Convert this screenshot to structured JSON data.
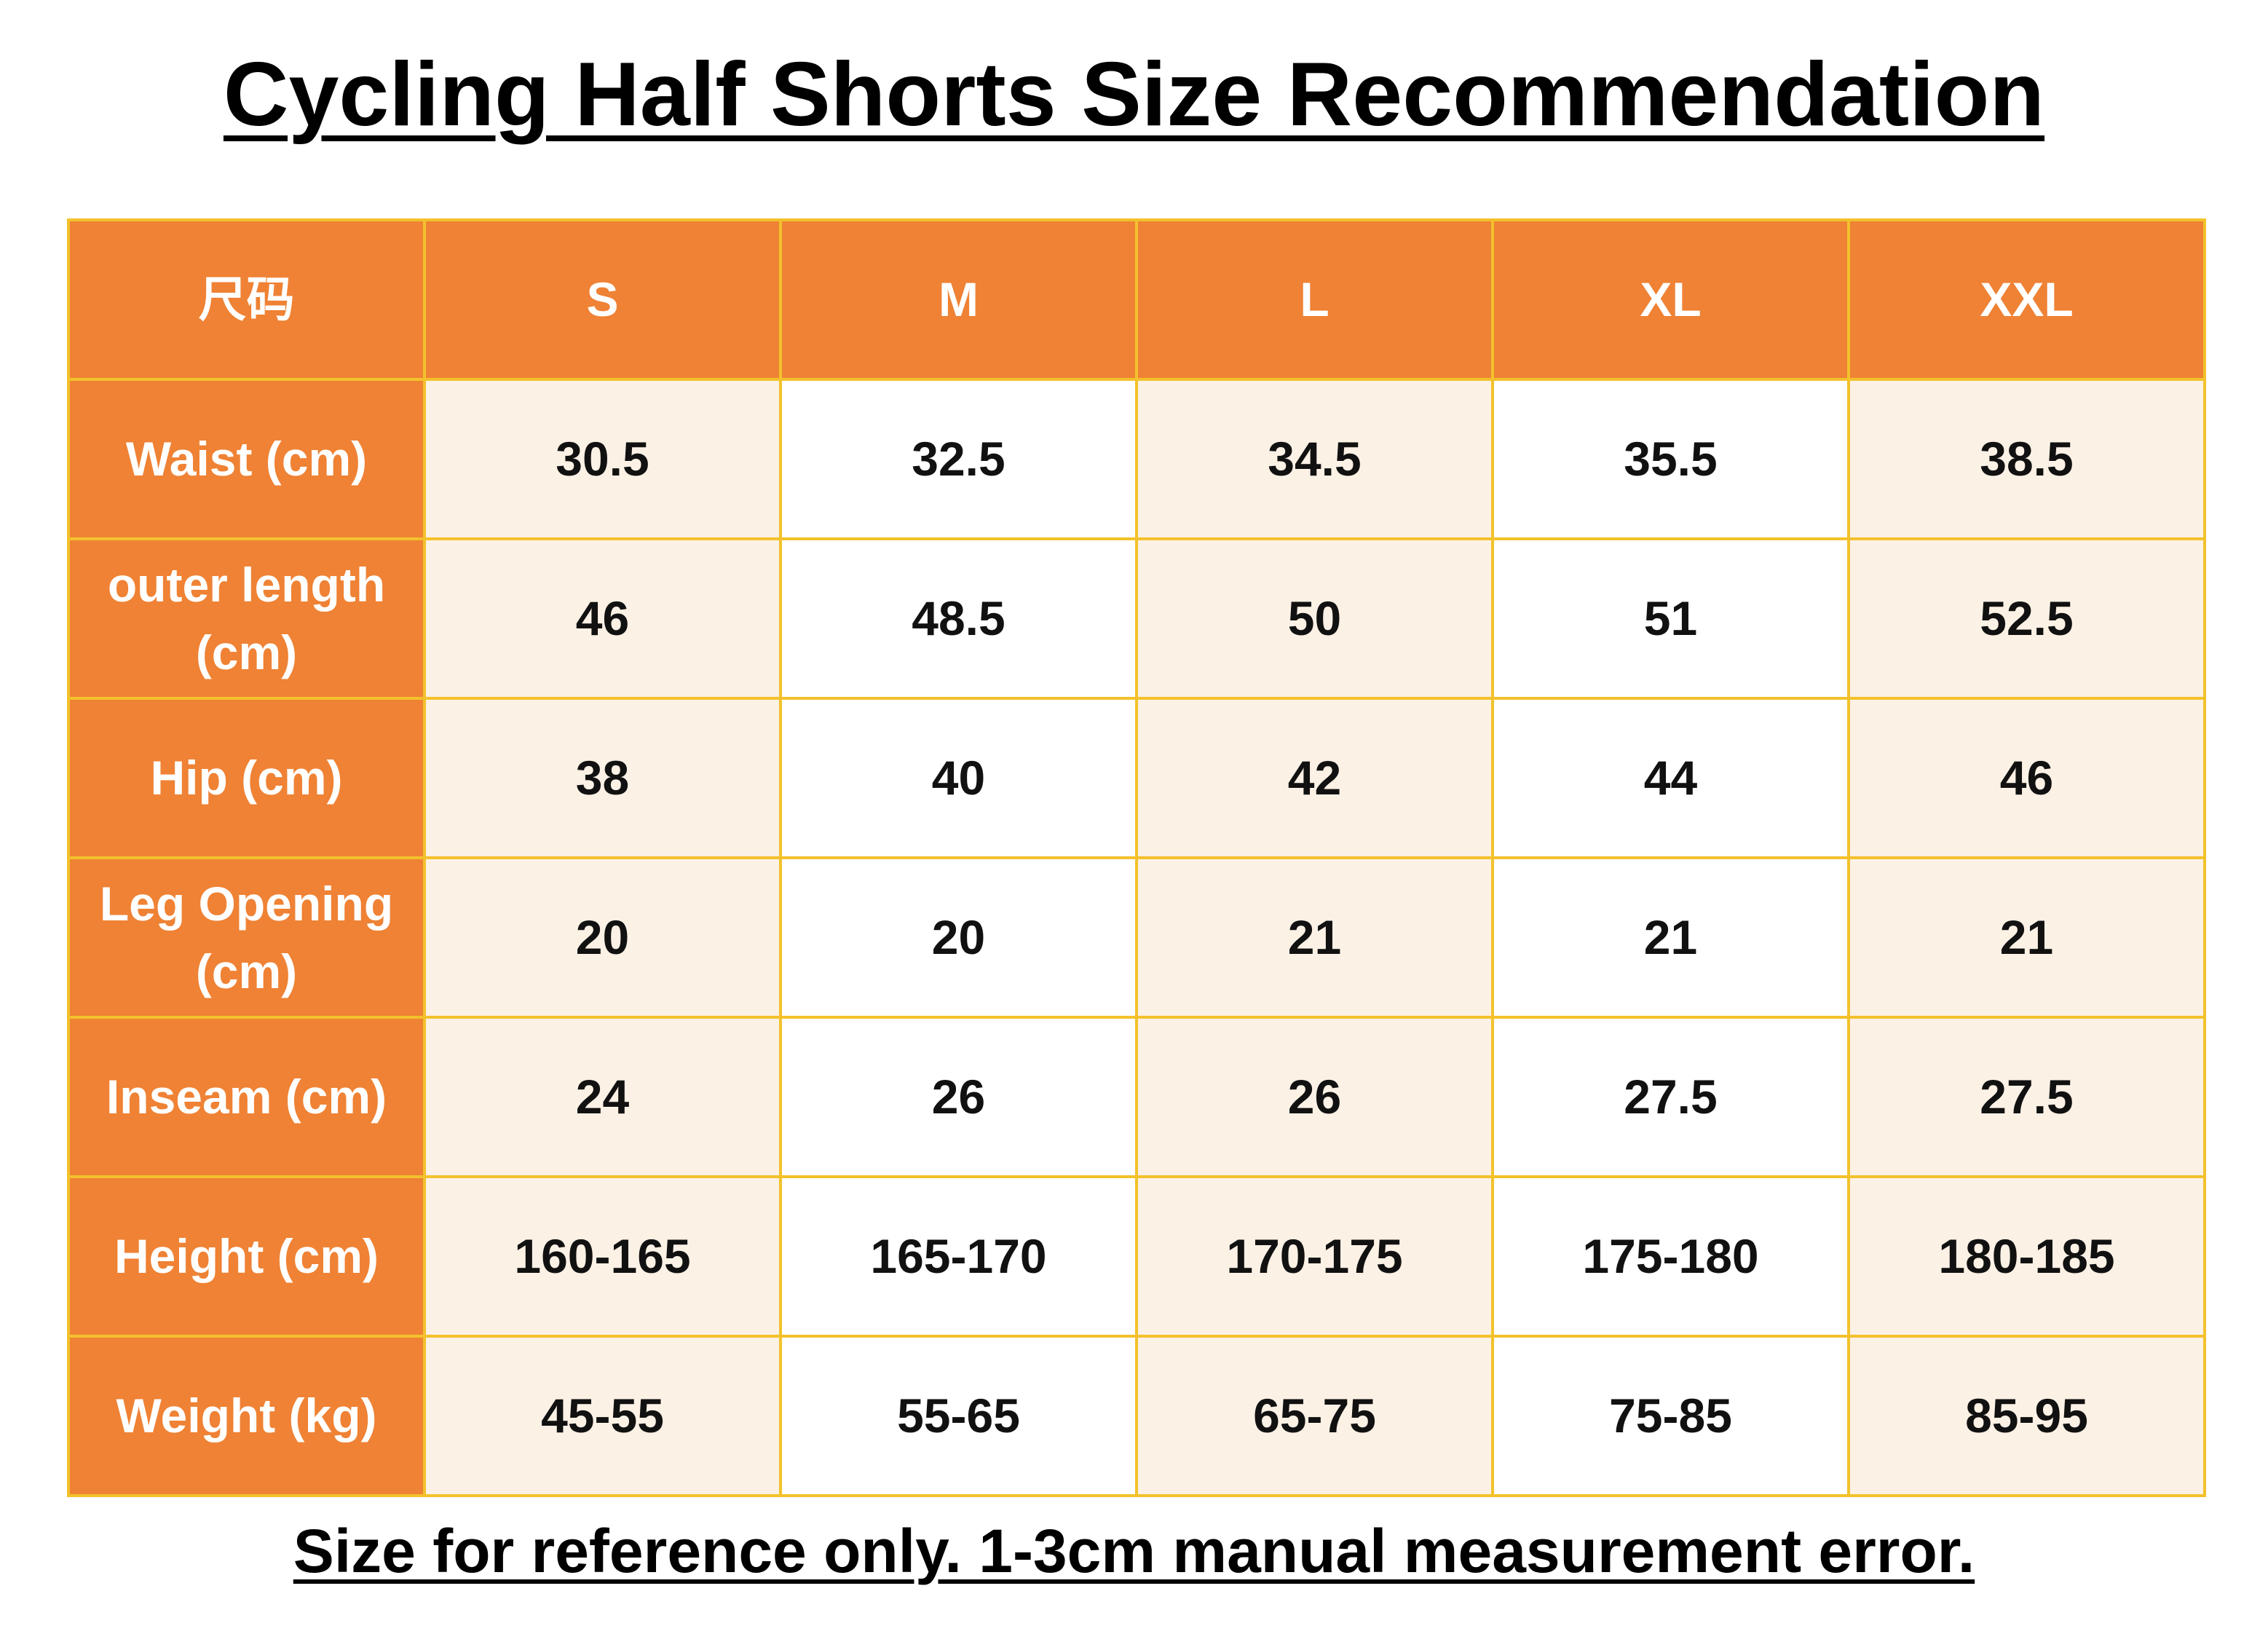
{
  "title": "Cycling Half Shorts Size Recommendation",
  "table": {
    "header": [
      "尺码",
      "S",
      "M",
      "L",
      "XL",
      "XXL"
    ],
    "rows": [
      [
        "Waist (cm)",
        "30.5",
        "32.5",
        "34.5",
        "35.5",
        "38.5"
      ],
      [
        "outer length (cm)",
        "46",
        "48.5",
        "50",
        "51",
        "52.5"
      ],
      [
        "Hip (cm)",
        "38",
        "40",
        "42",
        "44",
        "46"
      ],
      [
        "Leg Opening (cm)",
        "20",
        "20",
        "21",
        "21",
        "21"
      ],
      [
        "Inseam (cm)",
        "24",
        "26",
        "26",
        "27.5",
        "27.5"
      ],
      [
        "Height (cm)",
        "160-165",
        "165-170",
        "170-175",
        "175-180",
        "180-185"
      ],
      [
        "Weight (kg)",
        "45-55",
        "55-65",
        "65-75",
        "75-85",
        "85-95"
      ]
    ]
  },
  "footer": "Size for reference only. 1-3cm manual measurement error."
}
